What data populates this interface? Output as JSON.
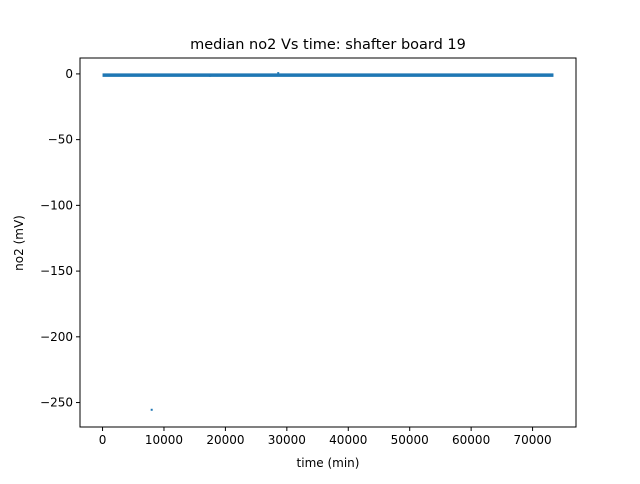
{
  "chart_data": {
    "type": "scatter",
    "title": "median no2 Vs time: shafter board 19",
    "xlabel": "time (min)",
    "ylabel": "no2 (mV)",
    "xlim": [
      -3670,
      77070
    ],
    "ylim": [
      -268.6,
      12.1
    ],
    "xticks": [
      0,
      10000,
      20000,
      30000,
      40000,
      50000,
      60000,
      70000
    ],
    "xtick_labels": [
      "0",
      "10000",
      "20000",
      "30000",
      "40000",
      "50000",
      "60000",
      "70000"
    ],
    "yticks": [
      0,
      -50,
      -100,
      -150,
      -200,
      -250
    ],
    "ytick_labels": [
      "0",
      "−50",
      "−100",
      "−150",
      "−200",
      "−250"
    ],
    "grid": false,
    "series_color": "#1f77b4",
    "dense_band": {
      "x_start": 0,
      "x_end": 73400,
      "y_low": -1.6,
      "y_high": 0.4
    },
    "points": [
      {
        "x": 6500,
        "y": -1.2
      },
      {
        "x": 8000,
        "y": -255.5
      },
      {
        "x": 17500,
        "y": -1.4
      },
      {
        "x": 18600,
        "y": -1.0
      },
      {
        "x": 28600,
        "y": 0.6
      }
    ]
  }
}
